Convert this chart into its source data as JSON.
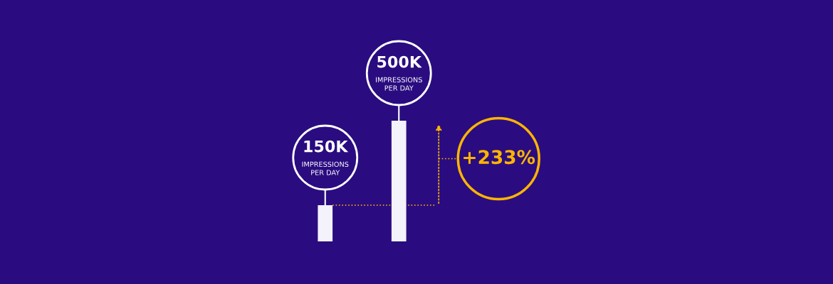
{
  "chart_data": {
    "type": "bar",
    "categories": [
      null,
      null
    ],
    "values": [
      150000,
      500000
    ],
    "color": "#f4f2fa",
    "value_labels": [
      "150K\nIMPRESSIONS\nPER DAY",
      "500K\nIMPRESSIONS\nPER DAY"
    ],
    "annotations": [
      "+233%"
    ],
    "ref_lines": [
      {
        "axis": "y",
        "value": 150000,
        "color": "#ffb400",
        "line_style": "dotted"
      }
    ]
  }
}
